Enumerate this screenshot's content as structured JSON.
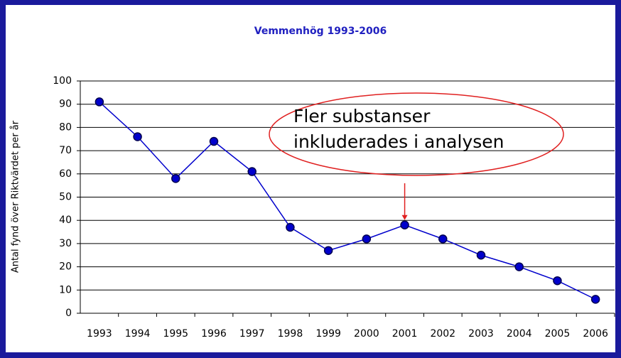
{
  "chart_data": {
    "type": "line",
    "title": "Vemmenhög 1993-2006",
    "ylabel": "Antal fynd över Riktvärdet per år",
    "categories": [
      "1993",
      "1994",
      "1995",
      "1996",
      "1997",
      "1998",
      "1999",
      "2000",
      "2001",
      "2002",
      "2003",
      "2004",
      "2005",
      "2006"
    ],
    "series": [
      {
        "name": "Vemmenhög",
        "color": "#0000cc",
        "values": [
          91,
          76,
          58,
          74,
          61,
          37,
          27,
          32,
          38,
          32,
          25,
          20,
          14,
          6
        ]
      }
    ],
    "ylim": [
      0,
      100
    ],
    "yticks": [
      0,
      10,
      20,
      30,
      40,
      50,
      60,
      70,
      80,
      90,
      100
    ],
    "grid": true,
    "annotation": {
      "lines": [
        "Fler substanser",
        "inkluderades i analysen"
      ],
      "category": "2001",
      "color": "#e02020"
    }
  }
}
